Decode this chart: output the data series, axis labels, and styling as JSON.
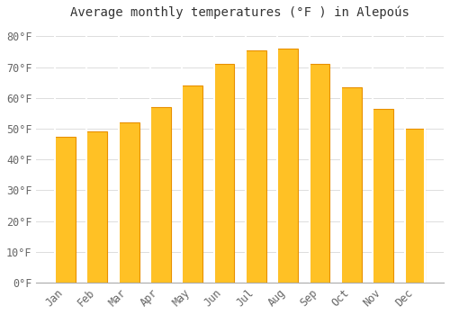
{
  "months": [
    "Jan",
    "Feb",
    "Mar",
    "Apr",
    "May",
    "Jun",
    "Jul",
    "Aug",
    "Sep",
    "Oct",
    "Nov",
    "Dec"
  ],
  "values": [
    47.5,
    49.0,
    52.0,
    57.0,
    64.0,
    71.0,
    75.5,
    76.0,
    71.0,
    63.5,
    56.5,
    50.0
  ],
  "bar_color_face": "#FFC125",
  "bar_color_edge": "#E89000",
  "title": "Average monthly temperatures (°F ) in Alepoús",
  "ylim": [
    0,
    84
  ],
  "yticks": [
    0,
    10,
    20,
    30,
    40,
    50,
    60,
    70,
    80
  ],
  "ytick_labels": [
    "0°F",
    "10°F",
    "20°F",
    "30°F",
    "40°F",
    "50°F",
    "60°F",
    "70°F",
    "80°F"
  ],
  "background_color": "#FFFFFF",
  "grid_color": "#DDDDDD",
  "title_fontsize": 10,
  "tick_fontsize": 8.5,
  "tick_color": "#666666"
}
